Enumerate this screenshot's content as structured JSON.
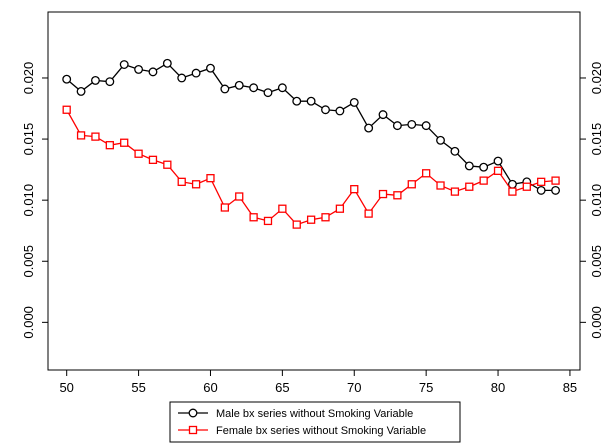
{
  "chart_data": {
    "type": "line",
    "x": [
      50,
      51,
      52,
      53,
      54,
      55,
      56,
      57,
      58,
      59,
      60,
      61,
      62,
      63,
      64,
      65,
      66,
      67,
      68,
      69,
      70,
      71,
      72,
      73,
      74,
      75,
      76,
      77,
      78,
      79,
      80,
      81,
      82,
      83,
      84
    ],
    "series": [
      {
        "name": "Male bx series without Smoking Variable",
        "color": "#000000",
        "marker": "circle",
        "values": [
          0.0199,
          0.0189,
          0.0198,
          0.0197,
          0.0211,
          0.0207,
          0.0205,
          0.0212,
          0.02,
          0.0204,
          0.0208,
          0.0191,
          0.0194,
          0.0192,
          0.0188,
          0.0192,
          0.0181,
          0.0181,
          0.0174,
          0.0173,
          0.018,
          0.0159,
          0.017,
          0.0161,
          0.0162,
          0.0161,
          0.0149,
          0.014,
          0.0128,
          0.0127,
          0.0132,
          0.0113,
          0.0115,
          0.0108,
          0.0108
        ]
      },
      {
        "name": "Female bx series without Smoking Variable",
        "color": "#ff0000",
        "marker": "square",
        "values": [
          0.0174,
          0.0153,
          0.0152,
          0.0145,
          0.0147,
          0.0138,
          0.0133,
          0.0129,
          0.0115,
          0.0113,
          0.0118,
          0.0094,
          0.0103,
          0.0086,
          0.0083,
          0.0093,
          0.008,
          0.0084,
          0.0086,
          0.0093,
          0.0109,
          0.0089,
          0.0105,
          0.0104,
          0.0113,
          0.0122,
          0.0112,
          0.0107,
          0.0111,
          0.0116,
          0.0124,
          0.0107,
          0.0111,
          0.0115,
          0.0116
        ]
      }
    ],
    "xlim": [
      48.7,
      85.7
    ],
    "xticks": [
      50,
      55,
      60,
      65,
      70,
      75,
      80,
      85
    ],
    "ylim": [
      -0.0039,
      0.0254
    ],
    "yticks": [
      {
        "value": 0,
        "label": "0.000"
      },
      {
        "value": 0.005,
        "label": "0.005"
      },
      {
        "value": 0.01,
        "label": "0.010"
      },
      {
        "value": 0.015,
        "label": "0.015"
      },
      {
        "value": 0.02,
        "label": "0.020"
      }
    ],
    "grid": false,
    "legend": "bottom"
  }
}
